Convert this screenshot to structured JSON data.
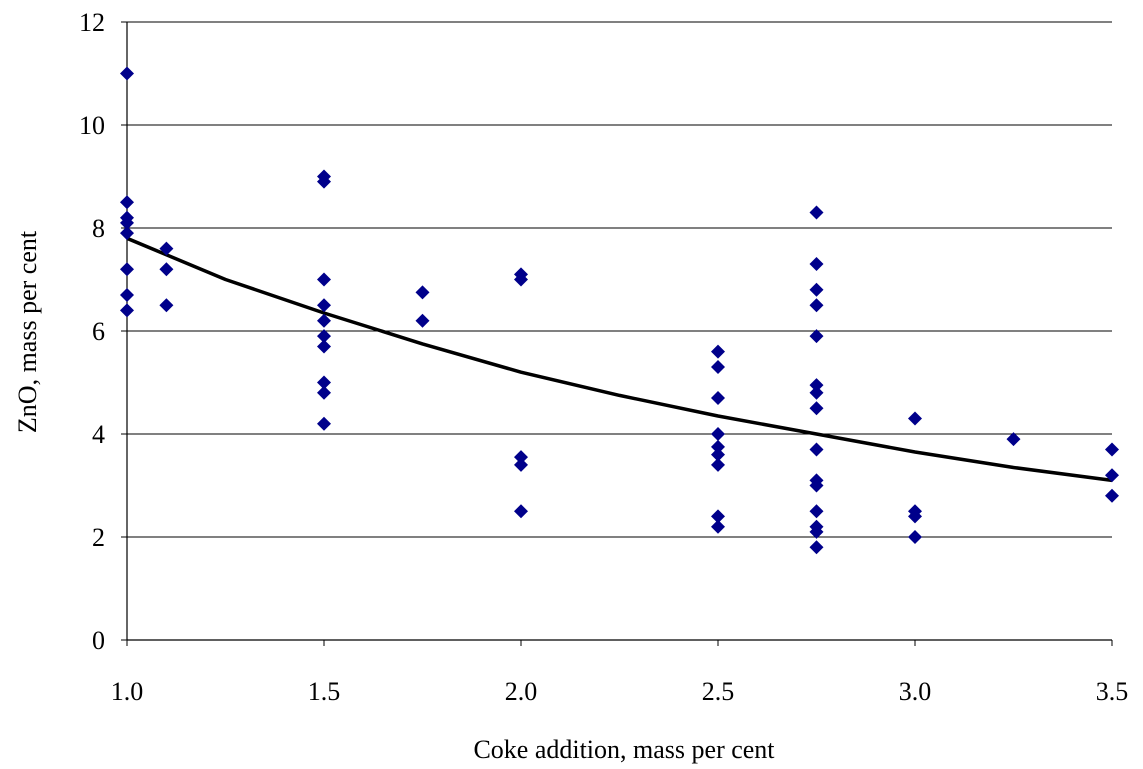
{
  "chart_data": {
    "type": "scatter",
    "title": "",
    "xlabel": "Coke addition, mass per cent",
    "ylabel": "ZnO, mass per cent",
    "xlim": [
      1.0,
      3.5
    ],
    "ylim": [
      0,
      12
    ],
    "x_ticks": [
      "1.0",
      "1.5",
      "2.0",
      "2.5",
      "3.0",
      "3.5"
    ],
    "y_ticks": [
      "0",
      "2",
      "4",
      "6",
      "8",
      "10",
      "12"
    ],
    "grid": "horizontal",
    "legend": "none",
    "marker_color": "#00008B",
    "line_color": "#000000",
    "series": [
      {
        "type": "scatter",
        "points": [
          [
            1.0,
            11.0
          ],
          [
            1.0,
            8.5
          ],
          [
            1.0,
            8.2
          ],
          [
            1.0,
            8.1
          ],
          [
            1.0,
            7.9
          ],
          [
            1.0,
            7.2
          ],
          [
            1.0,
            6.7
          ],
          [
            1.0,
            6.4
          ],
          [
            1.1,
            7.6
          ],
          [
            1.1,
            7.2
          ],
          [
            1.1,
            6.5
          ],
          [
            1.5,
            9.0
          ],
          [
            1.5,
            8.9
          ],
          [
            1.5,
            7.0
          ],
          [
            1.5,
            6.5
          ],
          [
            1.5,
            6.2
          ],
          [
            1.5,
            5.9
          ],
          [
            1.5,
            5.7
          ],
          [
            1.5,
            5.0
          ],
          [
            1.5,
            4.8
          ],
          [
            1.5,
            4.2
          ],
          [
            1.75,
            6.75
          ],
          [
            1.75,
            6.2
          ],
          [
            2.0,
            7.1
          ],
          [
            2.0,
            7.0
          ],
          [
            2.0,
            3.55
          ],
          [
            2.0,
            3.4
          ],
          [
            2.0,
            2.5
          ],
          [
            2.5,
            5.6
          ],
          [
            2.5,
            5.3
          ],
          [
            2.5,
            4.7
          ],
          [
            2.5,
            4.0
          ],
          [
            2.5,
            3.75
          ],
          [
            2.5,
            3.6
          ],
          [
            2.5,
            3.4
          ],
          [
            2.5,
            2.4
          ],
          [
            2.5,
            2.2
          ],
          [
            2.75,
            8.3
          ],
          [
            2.75,
            7.3
          ],
          [
            2.75,
            6.8
          ],
          [
            2.75,
            6.5
          ],
          [
            2.75,
            5.9
          ],
          [
            2.75,
            4.95
          ],
          [
            2.75,
            4.8
          ],
          [
            2.75,
            4.5
          ],
          [
            2.75,
            3.7
          ],
          [
            2.75,
            3.1
          ],
          [
            2.75,
            3.0
          ],
          [
            2.75,
            2.5
          ],
          [
            2.75,
            2.2
          ],
          [
            2.75,
            2.1
          ],
          [
            2.75,
            1.8
          ],
          [
            3.0,
            4.3
          ],
          [
            3.0,
            2.5
          ],
          [
            3.0,
            2.4
          ],
          [
            3.0,
            2.0
          ],
          [
            3.25,
            3.9
          ],
          [
            3.5,
            3.7
          ],
          [
            3.5,
            3.2
          ],
          [
            3.5,
            2.8
          ]
        ]
      },
      {
        "type": "line",
        "points": [
          [
            1.0,
            7.8
          ],
          [
            1.25,
            7.0
          ],
          [
            1.5,
            6.35
          ],
          [
            1.75,
            5.75
          ],
          [
            2.0,
            5.2
          ],
          [
            2.25,
            4.75
          ],
          [
            2.5,
            4.35
          ],
          [
            2.75,
            4.0
          ],
          [
            3.0,
            3.65
          ],
          [
            3.25,
            3.35
          ],
          [
            3.5,
            3.1
          ]
        ]
      }
    ]
  }
}
